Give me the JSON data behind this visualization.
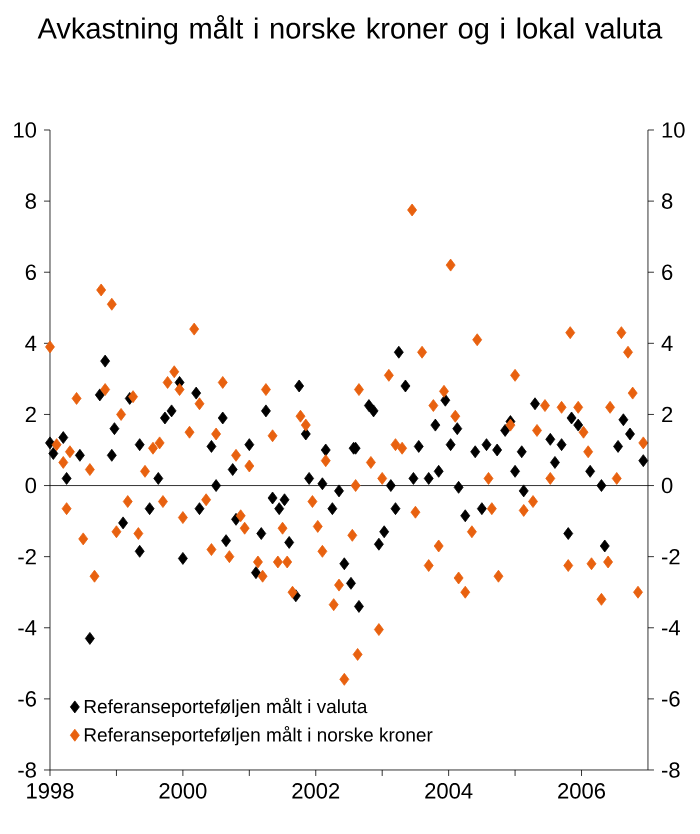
{
  "chart_data": {
    "type": "scatter",
    "title": "Avkastning målt i norske kroner og i lokal valuta",
    "xlim": [
      1998,
      2007
    ],
    "xticks": [
      1998,
      {
        "value": 1999,
        "label": null
      },
      2000,
      {
        "value": 2001,
        "label": null
      },
      2002,
      {
        "value": 2003,
        "label": null
      },
      2004,
      {
        "value": 2005,
        "label": null
      },
      2006
    ],
    "ylim": [
      -8,
      10
    ],
    "yticks": [
      -8,
      -6,
      -4,
      -2,
      0,
      2,
      4,
      6,
      8,
      10
    ],
    "y2lim": [
      -8,
      10
    ],
    "y2ticks": [
      -8,
      -6,
      -4,
      -2,
      0,
      2,
      4,
      6,
      8,
      10
    ],
    "grid": false,
    "legend": "bottom left",
    "marker": "diamond",
    "ref_lines": [
      {
        "axis": "y",
        "value": 0,
        "color": "#000000"
      }
    ],
    "series": [
      {
        "name": "Referanseporteføljen målt i valuta",
        "color": "#000000",
        "x": [
          1998.0,
          1998.05,
          1998.2,
          1998.25,
          1998.45,
          1998.75,
          1998.83,
          1998.93,
          1998.97,
          1999.2,
          1999.35,
          1999.63,
          1999.73,
          1999.83,
          1999.95,
          2000.2,
          2000.43,
          2000.5,
          2000.6,
          2000.75,
          2001.0,
          2001.25,
          2001.75,
          2001.85,
          2001.9,
          2002.1,
          2002.15,
          2002.35,
          2002.57,
          2002.6,
          2002.8,
          2002.87,
          2003.25,
          2003.35,
          2003.47,
          2003.55,
          2003.7,
          2003.8,
          2003.85,
          2003.95,
          2004.03,
          2004.13,
          2004.4,
          2004.57,
          2004.73,
          2004.85,
          2004.93,
          2005.0,
          2005.1,
          2005.3,
          2005.53,
          2005.6,
          2005.7,
          2005.85,
          2005.95,
          2006.13,
          2006.3,
          2006.55,
          2006.63,
          2006.73,
          2006.93,
          1998.6,
          1999.1,
          1999.35,
          1999.5,
          2000.0,
          2000.25,
          2000.65,
          2000.8,
          2001.1,
          2001.18,
          2001.35,
          2001.45,
          2001.53,
          2001.6,
          2001.7,
          2002.25,
          2002.43,
          2002.53,
          2002.65,
          2002.95,
          2003.03,
          2003.13,
          2003.2,
          2004.15,
          2004.25,
          2004.5,
          2005.13,
          2005.8,
          2006.35
        ],
        "values": [
          1.2,
          0.9,
          1.35,
          0.2,
          0.85,
          2.55,
          3.5,
          0.85,
          1.6,
          2.45,
          1.15,
          0.2,
          1.9,
          2.1,
          2.9,
          2.6,
          1.1,
          0.0,
          1.9,
          0.45,
          1.15,
          2.1,
          2.8,
          1.45,
          0.2,
          0.05,
          1.0,
          -0.15,
          1.05,
          1.05,
          2.25,
          2.1,
          3.75,
          2.8,
          0.2,
          1.1,
          0.2,
          1.7,
          0.4,
          2.4,
          1.15,
          1.6,
          0.95,
          1.15,
          1.0,
          1.55,
          1.8,
          0.4,
          0.95,
          2.3,
          1.3,
          0.65,
          1.15,
          1.9,
          1.7,
          0.4,
          0.0,
          1.1,
          1.85,
          1.45,
          0.7,
          -4.3,
          -1.05,
          -1.85,
          -0.65,
          -2.05,
          -0.65,
          -1.55,
          -0.95,
          -2.45,
          -1.35,
          -0.35,
          -0.65,
          -0.4,
          -1.6,
          -3.1,
          -0.65,
          -2.2,
          -2.75,
          -3.4,
          -1.65,
          -1.3,
          0.0,
          -0.65,
          -0.05,
          -0.85,
          -0.65,
          -0.15,
          -1.35,
          -1.7
        ]
      },
      {
        "name": "Referanseporteføljen målt i norske kroner",
        "color": "#e8610f",
        "x": [
          1998.0,
          1998.1,
          1998.2,
          1998.3,
          1998.4,
          1998.6,
          1998.77,
          1998.83,
          1998.93,
          1999.07,
          1999.25,
          1999.43,
          1999.55,
          1999.65,
          1999.77,
          1999.87,
          1999.95,
          2000.1,
          2000.17,
          2000.25,
          2000.5,
          2000.6,
          2000.8,
          2001.0,
          2001.25,
          2001.35,
          2001.77,
          2001.85,
          2002.15,
          2002.6,
          2002.65,
          2002.83,
          2003.0,
          2003.1,
          2003.2,
          2003.3,
          2003.45,
          2003.6,
          2003.77,
          2003.93,
          2004.03,
          2004.1,
          2004.43,
          2004.6,
          2004.93,
          2005.0,
          2005.33,
          2005.45,
          2005.53,
          2005.7,
          2005.83,
          2005.95,
          2006.03,
          2006.1,
          2006.43,
          2006.53,
          2006.6,
          2006.7,
          2006.77,
          2006.93,
          1998.25,
          1998.5,
          1998.67,
          1999.0,
          1999.17,
          1999.33,
          1999.7,
          2000.0,
          2000.35,
          2000.43,
          2000.7,
          2000.87,
          2000.93,
          2001.13,
          2001.2,
          2001.43,
          2001.5,
          2001.57,
          2001.65,
          2001.95,
          2002.03,
          2002.1,
          2002.27,
          2002.35,
          2002.43,
          2002.55,
          2002.63,
          2002.95,
          2003.5,
          2003.7,
          2003.85,
          2004.15,
          2004.25,
          2004.35,
          2004.65,
          2004.75,
          2005.13,
          2005.27,
          2005.8,
          2006.15,
          2006.3,
          2006.4,
          2006.85
        ],
        "values": [
          3.9,
          1.15,
          0.65,
          0.95,
          2.45,
          0.45,
          5.5,
          2.7,
          5.1,
          2.0,
          2.5,
          0.4,
          1.05,
          1.2,
          2.9,
          3.2,
          2.7,
          1.5,
          4.4,
          2.3,
          1.45,
          2.9,
          0.85,
          0.55,
          2.7,
          1.4,
          1.95,
          1.7,
          0.7,
          0.0,
          2.7,
          0.65,
          0.2,
          3.1,
          1.15,
          1.05,
          7.75,
          3.75,
          2.25,
          2.65,
          6.2,
          1.95,
          4.1,
          0.2,
          1.7,
          3.1,
          1.55,
          2.25,
          0.2,
          2.2,
          4.3,
          2.2,
          1.5,
          0.95,
          2.2,
          0.2,
          4.3,
          3.75,
          2.6,
          1.2,
          -0.65,
          -1.5,
          -2.55,
          -1.3,
          -0.45,
          -1.35,
          -0.45,
          -0.9,
          -0.4,
          -1.8,
          -2.0,
          -0.85,
          -1.2,
          -2.15,
          -2.55,
          -2.15,
          -1.2,
          -2.15,
          -3.0,
          -0.45,
          -1.15,
          -1.85,
          -3.35,
          -2.8,
          -5.45,
          -1.4,
          -4.75,
          -4.05,
          -0.75,
          -2.25,
          -1.7,
          -2.6,
          -3.0,
          -1.3,
          -0.65,
          -2.55,
          -0.7,
          -0.45,
          -2.25,
          -2.2,
          -3.2,
          -2.15,
          -3.0
        ]
      }
    ]
  }
}
